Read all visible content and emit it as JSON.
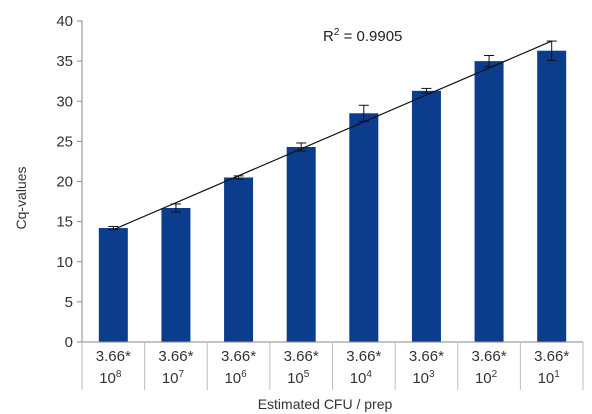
{
  "chart_data": {
    "type": "bar",
    "title": "",
    "xlabel": "Estimated CFU / prep",
    "ylabel": "Cq-values",
    "ylim": [
      0,
      40
    ],
    "yticks": [
      0,
      5,
      10,
      15,
      20,
      25,
      30,
      35,
      40
    ],
    "categories": [
      {
        "base": "3.66*",
        "mant": "10",
        "exp": "8"
      },
      {
        "base": "3.66*",
        "mant": "10",
        "exp": "7"
      },
      {
        "base": "3.66*",
        "mant": "10",
        "exp": "6"
      },
      {
        "base": "3.66*",
        "mant": "10",
        "exp": "5"
      },
      {
        "base": "3.66*",
        "mant": "10",
        "exp": "4"
      },
      {
        "base": "3.66*",
        "mant": "10",
        "exp": "3"
      },
      {
        "base": "3.66*",
        "mant": "10",
        "exp": "2"
      },
      {
        "base": "3.66*",
        "mant": "10",
        "exp": "1"
      }
    ],
    "values": [
      14.2,
      16.7,
      20.5,
      24.3,
      28.5,
      31.3,
      35.0,
      36.3
    ],
    "errors": [
      0.2,
      0.5,
      0.2,
      0.5,
      1.0,
      0.3,
      0.7,
      1.2
    ],
    "trendline": {
      "start": 14.0,
      "end": 37.5
    },
    "annotation": {
      "text": "R",
      "sup": "2",
      "rest": " = 0.9905"
    },
    "bar_color": "#0b3d8c",
    "grid": false
  }
}
